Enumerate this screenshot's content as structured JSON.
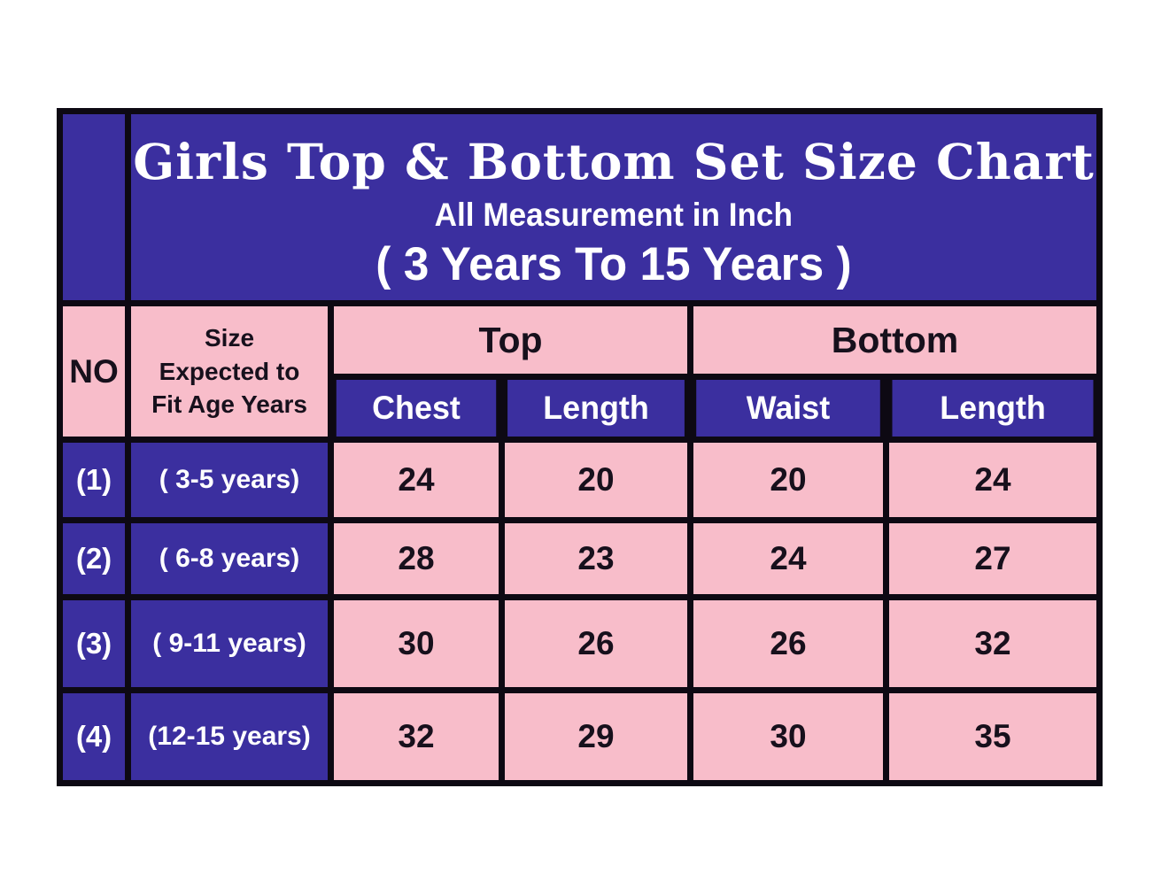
{
  "title": {
    "line1": "Girls Top & Bottom Set Size Chart",
    "line2": "All Measurement in Inch",
    "line3": "( 3 Years To 15 Years )"
  },
  "colors": {
    "indigo": "#3b2f9f",
    "pink": "#f8bdca",
    "border_black": "#0d0913",
    "title_text": "#ffffff",
    "header_text": "#17101c",
    "page_background": "#ffffff"
  },
  "table": {
    "no_header": "NO",
    "size_header_lines": [
      "Size",
      "Expected to",
      "Fit Age Years"
    ],
    "group_headers": {
      "top": "Top",
      "bottom": "Bottom"
    },
    "sub_headers": [
      "Chest",
      "Length",
      "Waist",
      "Length"
    ],
    "rows": [
      {
        "no": "(1)",
        "age": "( 3-5 years)",
        "values": [
          "24",
          "20",
          "20",
          "24"
        ]
      },
      {
        "no": "(2)",
        "age": "( 6-8 years)",
        "values": [
          "28",
          "23",
          "24",
          "27"
        ]
      },
      {
        "no": "(3)",
        "age": "( 9-11 years)",
        "values": [
          "30",
          "26",
          "26",
          "32"
        ]
      },
      {
        "no": "(4)",
        "age": "(12-15 years)",
        "values": [
          "32",
          "29",
          "30",
          "35"
        ]
      }
    ]
  },
  "chart_data": {
    "type": "table",
    "title": "Girls Top & Bottom Set Size Chart",
    "subtitle": "All Measurement in Inch",
    "range_note": "( 3 Years To 15 Years )",
    "columns": [
      "NO",
      "Size Expected to Fit Age Years",
      "Top - Chest",
      "Top - Length",
      "Bottom - Waist",
      "Bottom - Length"
    ],
    "rows": [
      [
        "(1)",
        "( 3-5 years)",
        24,
        20,
        20,
        24
      ],
      [
        "(2)",
        "( 6-8 years)",
        28,
        23,
        24,
        27
      ],
      [
        "(3)",
        "( 9-11 years)",
        30,
        26,
        26,
        32
      ],
      [
        "(4)",
        "(12-15 years)",
        32,
        29,
        30,
        35
      ]
    ],
    "units": "inches",
    "layout": "grouped header: Top spans (Chest, Length); Bottom spans (Waist, Length)"
  }
}
